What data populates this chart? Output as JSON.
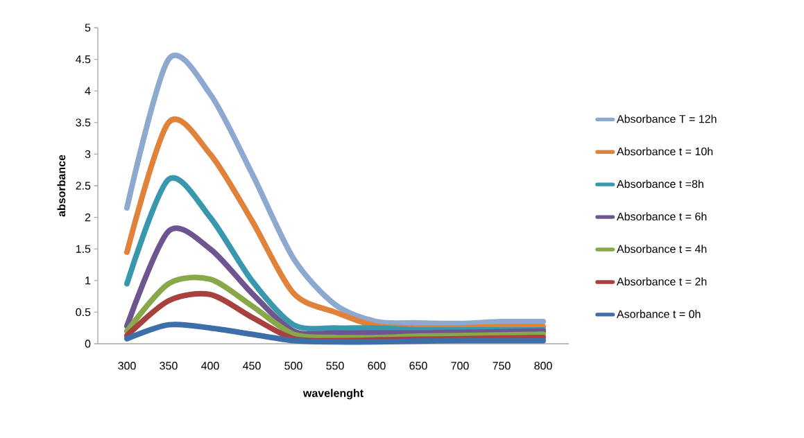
{
  "chart_data": {
    "type": "line",
    "xlabel": "wavelenght",
    "ylabel": "absorbance",
    "categories": [
      "300",
      "350",
      "400",
      "450",
      "500",
      "550",
      "600",
      "650",
      "700",
      "750",
      "800"
    ],
    "ylim": [
      0,
      5
    ],
    "yticks": [
      0,
      0.5,
      1,
      1.5,
      2,
      2.5,
      3,
      3.5,
      4,
      4.5,
      5
    ],
    "legend": "right",
    "series": [
      {
        "name": "Absorbance T = 12h",
        "color": "#8ea9d0",
        "values": [
          2.15,
          4.5,
          3.95,
          2.7,
          1.35,
          0.62,
          0.35,
          0.33,
          0.32,
          0.35,
          0.35
        ]
      },
      {
        "name": "Absorbance t = 10h",
        "color": "#e0823a",
        "values": [
          1.45,
          3.5,
          3.0,
          1.95,
          0.8,
          0.5,
          0.28,
          0.25,
          0.25,
          0.27,
          0.27
        ]
      },
      {
        "name": "Absorbance t =8h",
        "color": "#3a98ae",
        "values": [
          0.95,
          2.6,
          2.0,
          1.0,
          0.3,
          0.25,
          0.25,
          0.22,
          0.22,
          0.22,
          0.22
        ]
      },
      {
        "name": "Absorbance t = 6h",
        "color": "#6f5590",
        "values": [
          0.28,
          1.78,
          1.5,
          0.8,
          0.2,
          0.17,
          0.17,
          0.17,
          0.18,
          0.19,
          0.2
        ]
      },
      {
        "name": "Absorbance t = 4h",
        "color": "#88a84a",
        "values": [
          0.2,
          0.95,
          1.02,
          0.6,
          0.15,
          0.1,
          0.1,
          0.12,
          0.13,
          0.14,
          0.15
        ]
      },
      {
        "name": "Absorbance t = 2h",
        "color": "#a8403e",
        "values": [
          0.13,
          0.68,
          0.78,
          0.42,
          0.08,
          0.05,
          0.06,
          0.07,
          0.08,
          0.09,
          0.1
        ]
      },
      {
        "name": "Asorbance       t = 0h",
        "color": "#3e6ea8",
        "values": [
          0.08,
          0.3,
          0.25,
          0.15,
          0.05,
          0.03,
          0.03,
          0.04,
          0.05,
          0.05,
          0.05
        ]
      }
    ]
  }
}
